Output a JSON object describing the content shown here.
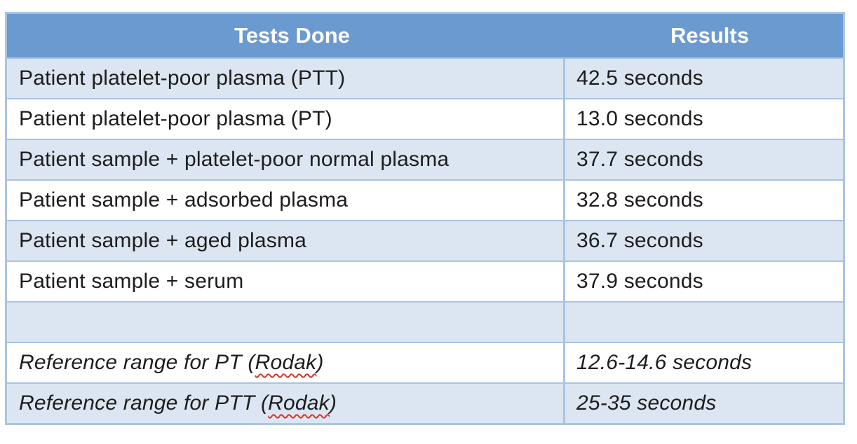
{
  "colors": {
    "header_bg": "#6b9ad1",
    "shaded_row_bg": "#dce6f2",
    "border": "#a8c4e2",
    "header_text": "#ffffff",
    "body_text": "#1d1d1d",
    "spellcheck_underline": "#d0342c"
  },
  "table": {
    "columns": [
      {
        "label": "Tests Done"
      },
      {
        "label": "Results"
      }
    ],
    "rows": [
      {
        "test": "Patient platelet-poor plasma (PTT)",
        "result": "42.5 seconds",
        "shaded": true,
        "italic": false
      },
      {
        "test": "Patient platelet-poor plasma (PT)",
        "result": "13.0 seconds",
        "shaded": false,
        "italic": false
      },
      {
        "test": "Patient sample + platelet-poor normal plasma",
        "result": "37.7 seconds",
        "shaded": true,
        "italic": false
      },
      {
        "test": "Patient sample + adsorbed plasma",
        "result": "32.8 seconds",
        "shaded": false,
        "italic": false
      },
      {
        "test": "Patient sample + aged plasma",
        "result": "36.7 seconds",
        "shaded": true,
        "italic": false
      },
      {
        "test": "Patient sample + serum",
        "result": "37.9 seconds",
        "shaded": false,
        "italic": false
      },
      {
        "test": "",
        "result": "",
        "shaded": true,
        "italic": false
      },
      {
        "test": "Reference range for PT (Rodak)",
        "result": "12.6-14.6 seconds",
        "shaded": false,
        "italic": true,
        "spellcheck_word": "Rodak"
      },
      {
        "test": "Reference range for PTT (Rodak)",
        "result": "25-35 seconds",
        "shaded": true,
        "italic": true,
        "spellcheck_word": "Rodak"
      }
    ]
  }
}
